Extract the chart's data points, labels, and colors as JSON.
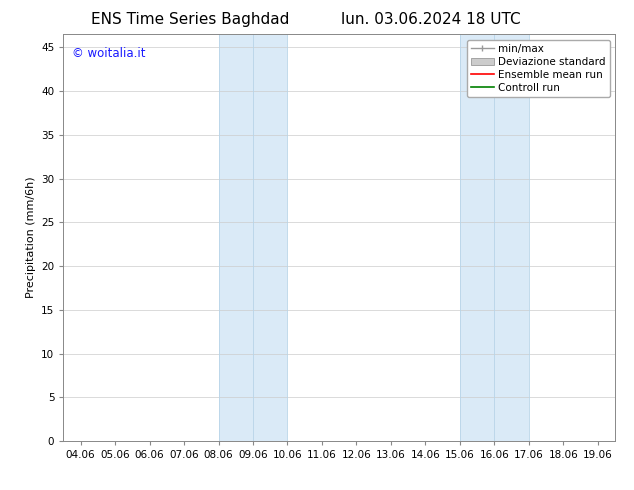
{
  "title_left": "ENS Time Series Baghdad",
  "title_right": "lun. 03.06.2024 18 UTC",
  "ylabel": "Precipitation (mm/6h)",
  "xlabel_ticks": [
    "04.06",
    "05.06",
    "06.06",
    "07.06",
    "08.06",
    "09.06",
    "10.06",
    "11.06",
    "12.06",
    "13.06",
    "14.06",
    "15.06",
    "16.06",
    "17.06",
    "18.06",
    "19.06"
  ],
  "x_tick_positions": [
    0,
    1,
    2,
    3,
    4,
    5,
    6,
    7,
    8,
    9,
    10,
    11,
    12,
    13,
    14,
    15
  ],
  "xlim": [
    -0.5,
    15.5
  ],
  "ylim": [
    0,
    46.5
  ],
  "yticks": [
    0,
    5,
    10,
    15,
    20,
    25,
    30,
    35,
    40,
    45
  ],
  "shaded_regions": [
    {
      "xstart": 4.0,
      "xend": 6.0,
      "color": "#daeaf7"
    },
    {
      "xstart": 11.0,
      "xend": 13.0,
      "color": "#daeaf7"
    }
  ],
  "shaded_borders": [
    {
      "x": 4.0
    },
    {
      "x": 5.0
    },
    {
      "x": 6.0
    },
    {
      "x": 11.0
    },
    {
      "x": 12.0
    },
    {
      "x": 13.0
    }
  ],
  "border_color": "#b8d4e8",
  "legend_entries": [
    {
      "label": "min/max"
    },
    {
      "label": "Deviazione standard"
    },
    {
      "label": "Ensemble mean run"
    },
    {
      "label": "Controll run"
    }
  ],
  "watermark_text": "© woitalia.it",
  "watermark_color": "#1a1aff",
  "background_color": "#ffffff",
  "title_fontsize": 11,
  "tick_fontsize": 7.5,
  "ylabel_fontsize": 8,
  "legend_fontsize": 7.5,
  "grid_color": "#cccccc"
}
